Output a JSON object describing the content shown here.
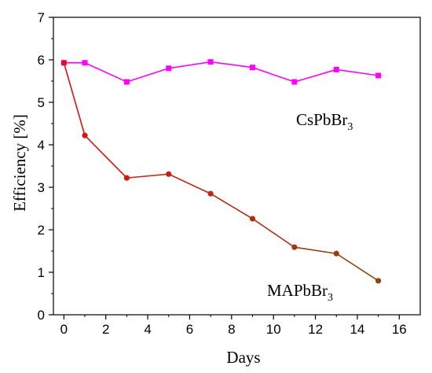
{
  "chart_data": {
    "type": "line",
    "title": "",
    "xlabel": "Days",
    "ylabel": "Efficiency [%]",
    "xlim": [
      -0.5,
      17
    ],
    "ylim": [
      0,
      7
    ],
    "xticks": [
      0,
      2,
      4,
      6,
      8,
      10,
      12,
      14,
      16
    ],
    "yticks": [
      0,
      1,
      2,
      3,
      4,
      5,
      6,
      7
    ],
    "grid": false,
    "legend": "none",
    "series": [
      {
        "name": "CsPbBr3",
        "color": "#ff00ff",
        "marker": "square",
        "x": [
          0,
          1,
          3,
          5,
          7,
          9,
          11,
          13,
          15
        ],
        "y": [
          5.93,
          5.93,
          5.48,
          5.8,
          5.95,
          5.82,
          5.48,
          5.77,
          5.63
        ]
      },
      {
        "name": "MAPbBr3",
        "color": "#e01010",
        "color_end": "#8b4513",
        "marker": "circle",
        "x": [
          0,
          1,
          3,
          5,
          7,
          9,
          11,
          13,
          15
        ],
        "y": [
          5.93,
          4.22,
          3.22,
          3.31,
          2.85,
          2.26,
          1.59,
          1.44,
          0.8
        ]
      }
    ],
    "annotations": {
      "cs_label": {
        "base": "CsPbBr",
        "sub": "3"
      },
      "ma_label": {
        "base": "MAPbBr",
        "sub": "3"
      }
    }
  }
}
